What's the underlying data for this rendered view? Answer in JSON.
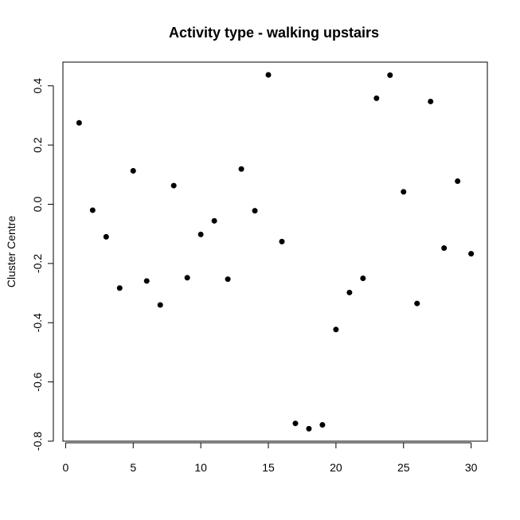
{
  "chart_data": {
    "type": "scatter",
    "title": "Activity type - walking upstairs",
    "xlabel": "",
    "ylabel": "Cluster Centre",
    "xlim": [
      -0.2,
      31.2
    ],
    "ylim": [
      -0.8,
      0.48
    ],
    "x_ticks": [
      0,
      5,
      10,
      15,
      20,
      25,
      30
    ],
    "y_ticks": [
      -0.8,
      -0.6,
      -0.4,
      -0.2,
      0.0,
      0.2,
      0.4
    ],
    "y_tick_labels": [
      "-0.8",
      "-0.6",
      "-0.4",
      "-0.2",
      "0.0",
      "0.2",
      "0.4"
    ],
    "grid": false,
    "legend": "none",
    "marker_color": "#000000",
    "series": [
      {
        "x": [
          1,
          2,
          3,
          4,
          5,
          6,
          7,
          8,
          9,
          10,
          11,
          12,
          13,
          14,
          15,
          16,
          17,
          18,
          19,
          20,
          21,
          22,
          23,
          24,
          25,
          26,
          27,
          28,
          29,
          30
        ],
        "y": [
          0.275,
          -0.02,
          -0.11,
          -0.283,
          0.113,
          -0.259,
          -0.34,
          0.063,
          -0.248,
          -0.102,
          -0.056,
          -0.253,
          0.119,
          -0.022,
          0.437,
          -0.126,
          -0.74,
          -0.758,
          -0.745,
          -0.423,
          -0.298,
          -0.25,
          0.358,
          0.436,
          0.042,
          -0.335,
          0.347,
          -0.148,
          0.078,
          -0.167
        ]
      }
    ]
  }
}
